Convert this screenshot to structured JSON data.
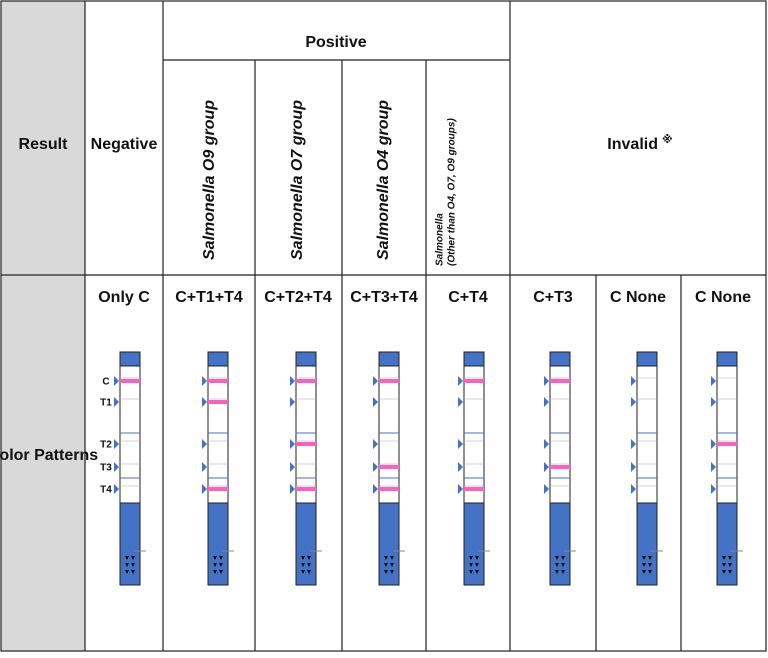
{
  "row_headers": [
    "Result",
    "Color Patterns"
  ],
  "negative": "Negative",
  "positive": {
    "title": "Positive",
    "groups": [
      "Salmonella O9 group",
      "Salmonella O7 group",
      "Salmonella O4 group"
    ],
    "other_group": {
      "name": "Salmonella",
      "note": "(Other than O4, O7, O9 groups)"
    }
  },
  "invalid": {
    "label": "Invalid",
    "mark": "※"
  },
  "patterns": [
    "Only C",
    "C+T1+T4",
    "C+T2+T4",
    "C+T3+T4",
    "C+T4",
    "C+T3",
    "C None",
    "C None"
  ],
  "line_labels": [
    "C",
    "T1",
    "T2",
    "T3",
    "T4"
  ]
}
